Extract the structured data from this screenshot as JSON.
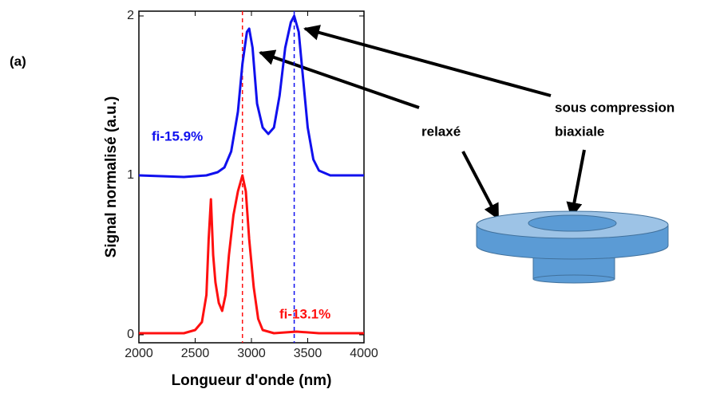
{
  "chart_data": {
    "type": "line",
    "panel_label": "(a)",
    "xlabel": "Longueur d'onde (nm)",
    "ylabel": "Signal normalisé (a.u.)",
    "xlim": [
      2000,
      4000
    ],
    "xticks": [
      2000,
      2500,
      3000,
      3500,
      4000
    ],
    "ylim": [
      -0.05,
      2.03
    ],
    "yticks": [
      0,
      1,
      2
    ],
    "series": [
      {
        "name": "fi-13.1%",
        "color": "#ff1010",
        "x": [
          2000,
          2200,
          2400,
          2500,
          2560,
          2600,
          2620,
          2640,
          2660,
          2680,
          2710,
          2740,
          2770,
          2800,
          2840,
          2880,
          2920,
          2950,
          2980,
          3020,
          3060,
          3100,
          3200,
          3400,
          3600,
          3800,
          4000
        ],
        "values": [
          0.01,
          0.01,
          0.01,
          0.03,
          0.08,
          0.25,
          0.6,
          0.85,
          0.5,
          0.33,
          0.2,
          0.15,
          0.25,
          0.5,
          0.75,
          0.9,
          1.0,
          0.9,
          0.6,
          0.3,
          0.1,
          0.03,
          0.01,
          0.02,
          0.01,
          0.01,
          0.01
        ]
      },
      {
        "name": "fi-15.9%",
        "color": "#1010ee",
        "x": [
          2000,
          2400,
          2600,
          2700,
          2760,
          2820,
          2880,
          2920,
          2960,
          2980,
          3010,
          3050,
          3100,
          3150,
          3200,
          3250,
          3300,
          3350,
          3380,
          3420,
          3460,
          3500,
          3550,
          3600,
          3700,
          3800,
          4000
        ],
        "values": [
          1.0,
          0.99,
          1.0,
          1.02,
          1.05,
          1.15,
          1.4,
          1.7,
          1.9,
          1.92,
          1.8,
          1.45,
          1.3,
          1.26,
          1.3,
          1.5,
          1.8,
          1.96,
          2.0,
          1.9,
          1.6,
          1.3,
          1.1,
          1.03,
          1.0,
          1.0,
          1.0
        ]
      }
    ],
    "reference_lines": [
      {
        "x": 2920,
        "color": "#ff1010"
      },
      {
        "x": 3380,
        "color": "#1010ee"
      }
    ],
    "annotations": {
      "relaxed": "relaxé",
      "compressed_line1": "sous compression",
      "compressed_line2": "biaxiale"
    }
  }
}
